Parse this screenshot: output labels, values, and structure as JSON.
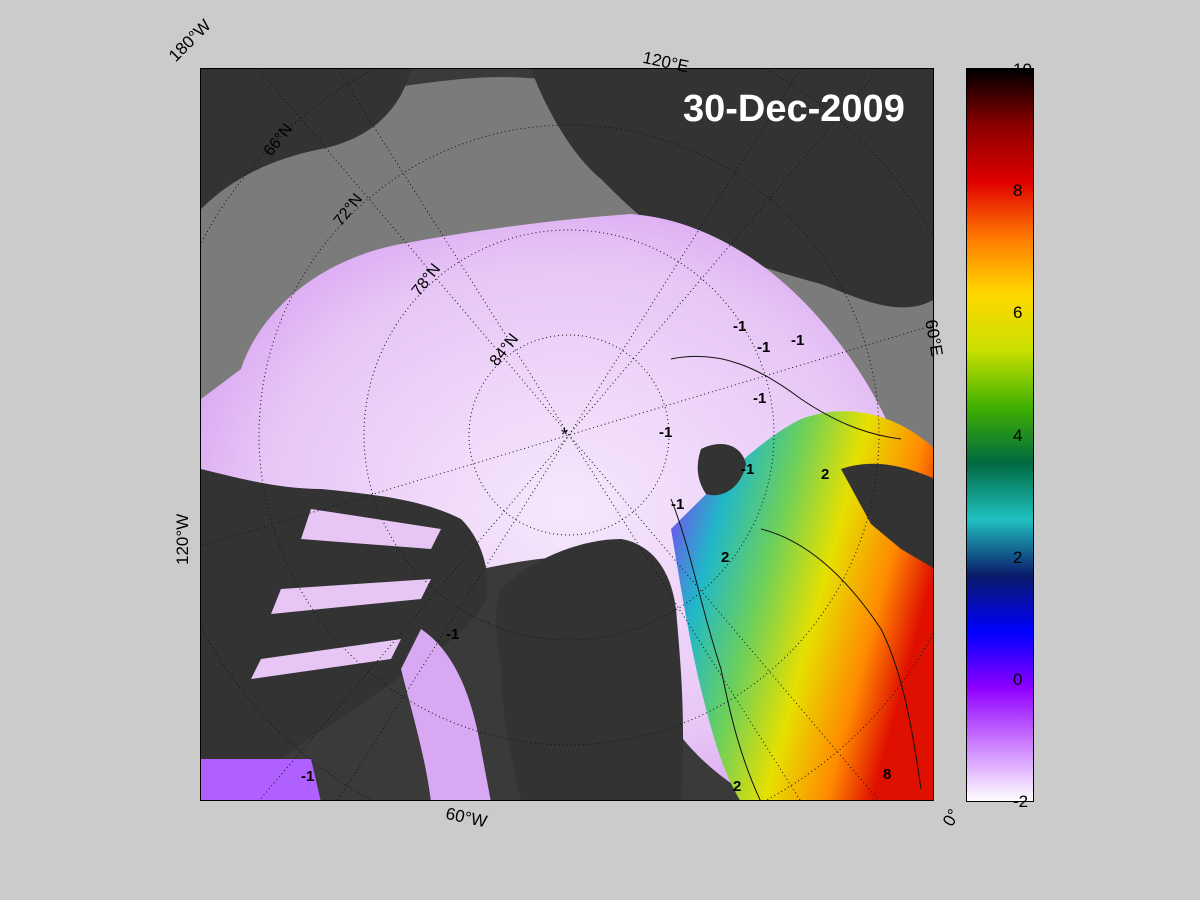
{
  "map": {
    "date": "30-Dec-2009",
    "longitude_labels": {
      "lon_180w": "180°W",
      "lon_120e": "120°E",
      "lon_60e": "60°E",
      "lon_120w": "120°W",
      "lon_60w": "60°W",
      "lon_0": "0°"
    },
    "latitude_labels": {
      "lat_66n": "66°N",
      "lat_72n": "72°N",
      "lat_78n": "78°N",
      "lat_84n": "84°N"
    },
    "contour_labels": [
      "-1",
      "-1",
      "-1",
      "-1",
      "-1",
      "-1",
      "-1",
      "-1",
      "-1",
      "2",
      "2",
      "2",
      "8"
    ],
    "pole_marker": "*"
  },
  "colorbar": {
    "ticks": [
      "10",
      "8",
      "6",
      "4",
      "2",
      "0",
      "-2"
    ],
    "colors": [
      "#000000",
      "#8a0000",
      "#e00000",
      "#ff7a00",
      "#ffd800",
      "#c8e000",
      "#40b000",
      "#006a40",
      "#20c0c0",
      "#0a1a6a",
      "#0000ff",
      "#9000ff",
      "#cc80ff",
      "#ffffff"
    ]
  }
}
